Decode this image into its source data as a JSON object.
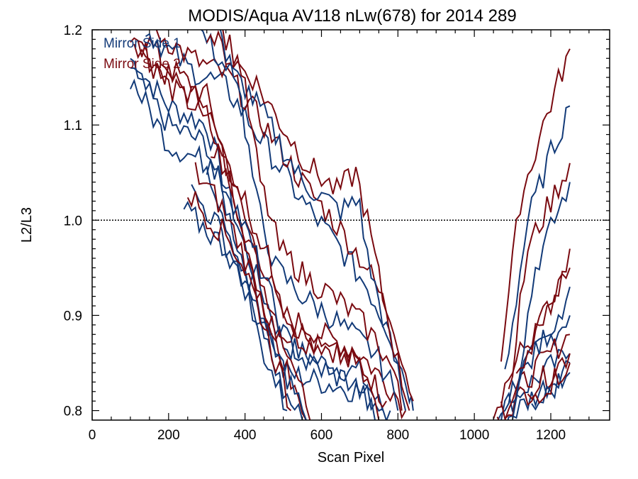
{
  "chart_data": {
    "type": "line",
    "title": "MODIS/Aqua AV118 nLw(678) for 2014 289",
    "xlabel": "Scan Pixel",
    "ylabel": "L2/L3",
    "xlim": [
      0,
      1354
    ],
    "ylim": [
      0.79,
      1.2
    ],
    "xticks": [
      "0",
      "200",
      "400",
      "600",
      "800",
      "1000",
      "1200"
    ],
    "yticks": [
      "0.8",
      "0.9",
      "1.0",
      "1.1",
      "1.2"
    ],
    "reference_line": 1.0,
    "legend": [
      {
        "label": "Mirror Side 1",
        "color": "#123a78"
      },
      {
        "label": "Mirror Side 2",
        "color": "#7a0a10"
      }
    ],
    "series": [
      {
        "mirror": 1,
        "segments": [
          [
            [
              100,
              1.17
            ],
            [
              200,
              1.12
            ],
            [
              300,
              1.1
            ],
            [
              400,
              0.97
            ],
            [
              450,
              0.92
            ],
            [
              500,
              0.87
            ],
            [
              600,
              0.85
            ],
            [
              700,
              0.84
            ],
            [
              760,
              0.8
            ]
          ],
          [
            [
              1060,
              0.79
            ],
            [
              1120,
              0.84
            ],
            [
              1180,
              0.87
            ],
            [
              1250,
              0.9
            ]
          ]
        ]
      },
      {
        "mirror": 2,
        "segments": [
          [
            [
              100,
              1.19
            ],
            [
              200,
              1.15
            ],
            [
              300,
              1.12
            ],
            [
              400,
              0.99
            ],
            [
              450,
              0.93
            ],
            [
              500,
              0.88
            ],
            [
              600,
              0.87
            ],
            [
              700,
              0.85
            ],
            [
              770,
              0.81
            ]
          ],
          [
            [
              1050,
              0.8
            ],
            [
              1120,
              0.86
            ],
            [
              1180,
              0.89
            ],
            [
              1250,
              0.95
            ]
          ]
        ]
      },
      {
        "mirror": 1,
        "segments": [
          [
            [
              100,
              1.16
            ],
            [
              200,
              1.1
            ],
            [
              300,
              1.08
            ],
            [
              400,
              0.95
            ],
            [
              450,
              0.9
            ],
            [
              500,
              0.84
            ],
            [
              600,
              0.83
            ],
            [
              700,
              0.82
            ],
            [
              780,
              0.8
            ]
          ],
          [
            [
              1070,
              0.8
            ],
            [
              1120,
              0.82
            ],
            [
              1180,
              0.84
            ],
            [
              1250,
              0.86
            ]
          ]
        ]
      },
      {
        "mirror": 2,
        "segments": [
          [
            [
              120,
              1.2
            ],
            [
              200,
              1.16
            ],
            [
              300,
              1.13
            ],
            [
              400,
              1.0
            ],
            [
              450,
              0.95
            ],
            [
              500,
              0.9
            ],
            [
              600,
              0.88
            ],
            [
              700,
              0.86
            ],
            [
              790,
              0.82
            ],
            [
              820,
              0.8
            ]
          ],
          [
            [
              1060,
              0.79
            ],
            [
              1130,
              0.83
            ],
            [
              1200,
              0.86
            ],
            [
              1250,
              0.88
            ]
          ]
        ]
      },
      {
        "mirror": 1,
        "segments": [
          [
            [
              100,
              1.15
            ],
            [
              200,
              1.08
            ],
            [
              300,
              1.06
            ],
            [
              400,
              0.94
            ],
            [
              450,
              0.88
            ],
            [
              500,
              0.82
            ],
            [
              550,
              0.79
            ]
          ],
          [
            [
              1080,
              0.79
            ],
            [
              1140,
              0.81
            ],
            [
              1200,
              0.83
            ],
            [
              1250,
              0.85
            ]
          ]
        ]
      },
      {
        "mirror": 2,
        "segments": [
          [
            [
              110,
              1.19
            ],
            [
              200,
              1.14
            ],
            [
              300,
              1.11
            ],
            [
              400,
              0.98
            ],
            [
              450,
              0.91
            ],
            [
              500,
              0.85
            ],
            [
              560,
              0.79
            ]
          ],
          [
            [
              1070,
              0.8
            ],
            [
              1140,
              0.82
            ],
            [
              1200,
              0.84
            ],
            [
              1250,
              0.86
            ]
          ]
        ]
      },
      {
        "mirror": 1,
        "segments": [
          [
            [
              140,
              1.2
            ],
            [
              250,
              1.16
            ],
            [
              350,
              1.14
            ],
            [
              450,
              1.08
            ],
            [
              550,
              1.02
            ],
            [
              650,
              0.97
            ],
            [
              720,
              0.93
            ],
            [
              780,
              0.88
            ],
            [
              830,
              0.82
            ],
            [
              840,
              0.8
            ]
          ],
          [
            [
              1100,
              0.8
            ],
            [
              1160,
              0.95
            ],
            [
              1200,
              0.99
            ],
            [
              1250,
              1.04
            ]
          ]
        ]
      },
      {
        "mirror": 2,
        "segments": [
          [
            [
              160,
              1.2
            ],
            [
              260,
              1.17
            ],
            [
              360,
              1.15
            ],
            [
              450,
              1.1
            ],
            [
              550,
              1.04
            ],
            [
              650,
              0.99
            ],
            [
              720,
              0.95
            ],
            [
              790,
              0.89
            ],
            [
              840,
              0.81
            ]
          ],
          [
            [
              1090,
              0.82
            ],
            [
              1140,
              0.97
            ],
            [
              1200,
              1.02
            ],
            [
              1250,
              1.06
            ]
          ]
        ]
      },
      {
        "mirror": 1,
        "segments": [
          [
            [
              280,
              1.2
            ],
            [
              350,
              1.16
            ],
            [
              400,
              1.14
            ],
            [
              450,
              1.11
            ],
            [
              550,
              1.04
            ],
            [
              650,
              1.01
            ],
            [
              700,
              1.02
            ],
            [
              720,
              0.96
            ],
            [
              760,
              0.9
            ],
            [
              800,
              0.84
            ],
            [
              820,
              0.8
            ]
          ],
          [
            [
              1080,
              0.84
            ],
            [
              1140,
              1.0
            ],
            [
              1200,
              1.07
            ],
            [
              1250,
              1.12
            ]
          ]
        ]
      },
      {
        "mirror": 2,
        "segments": [
          [
            [
              300,
              1.2
            ],
            [
              360,
              1.17
            ],
            [
              420,
              1.15
            ],
            [
              480,
              1.11
            ],
            [
              560,
              1.06
            ],
            [
              640,
              1.03
            ],
            [
              690,
              1.05
            ],
            [
              720,
              1.0
            ],
            [
              760,
              0.92
            ],
            [
              800,
              0.85
            ],
            [
              830,
              0.8
            ]
          ],
          [
            [
              1070,
              0.86
            ],
            [
              1120,
              1.02
            ],
            [
              1180,
              1.1
            ],
            [
              1250,
              1.18
            ]
          ]
        ]
      },
      {
        "mirror": 1,
        "segments": [
          [
            [
              330,
              1.2
            ],
            [
              380,
              1.15
            ],
            [
              430,
              1.02
            ],
            [
              480,
              0.95
            ],
            [
              550,
              0.92
            ],
            [
              620,
              0.9
            ],
            [
              680,
              0.88
            ],
            [
              740,
              0.86
            ],
            [
              780,
              0.83
            ],
            [
              800,
              0.8
            ]
          ],
          [
            [
              1100,
              0.82
            ],
            [
              1160,
              0.86
            ],
            [
              1220,
              0.9
            ],
            [
              1250,
              0.93
            ]
          ]
        ]
      },
      {
        "mirror": 2,
        "segments": [
          [
            [
              340,
              1.2
            ],
            [
              390,
              1.16
            ],
            [
              440,
              1.04
            ],
            [
              490,
              0.97
            ],
            [
              560,
              0.94
            ],
            [
              630,
              0.92
            ],
            [
              690,
              0.9
            ],
            [
              750,
              0.87
            ],
            [
              790,
              0.84
            ],
            [
              810,
              0.8
            ]
          ],
          [
            [
              1110,
              0.84
            ],
            [
              1170,
              0.89
            ],
            [
              1220,
              0.93
            ],
            [
              1250,
              0.97
            ]
          ]
        ]
      },
      {
        "mirror": 1,
        "segments": [
          [
            [
              300,
              1.06
            ],
            [
              360,
              1.03
            ],
            [
              400,
              0.99
            ],
            [
              450,
              0.94
            ],
            [
              500,
              0.88
            ],
            [
              560,
              0.85
            ],
            [
              620,
              0.84
            ],
            [
              680,
              0.83
            ],
            [
              720,
              0.81
            ],
            [
              740,
              0.79
            ]
          ],
          [
            [
              1150,
              0.8
            ],
            [
              1200,
              0.82
            ],
            [
              1250,
              0.84
            ]
          ]
        ]
      },
      {
        "mirror": 2,
        "segments": [
          [
            [
              310,
              1.08
            ],
            [
              370,
              1.05
            ],
            [
              410,
              1.01
            ],
            [
              460,
              0.96
            ],
            [
              510,
              0.9
            ],
            [
              570,
              0.87
            ],
            [
              630,
              0.86
            ],
            [
              690,
              0.85
            ],
            [
              730,
              0.82
            ],
            [
              750,
              0.79
            ]
          ],
          [
            [
              1140,
              0.81
            ],
            [
              1200,
              0.83
            ],
            [
              1250,
              0.85
            ]
          ]
        ]
      },
      {
        "mirror": 1,
        "segments": [
          [
            [
              260,
              1.03
            ],
            [
              320,
              1.0
            ],
            [
              370,
              0.96
            ],
            [
              420,
              0.91
            ],
            [
              480,
              0.86
            ],
            [
              530,
              0.82
            ],
            [
              560,
              0.79
            ]
          ]
        ]
      },
      {
        "mirror": 2,
        "segments": [
          [
            [
              270,
              1.05
            ],
            [
              330,
              1.02
            ],
            [
              380,
              0.98
            ],
            [
              430,
              0.93
            ],
            [
              490,
              0.87
            ],
            [
              540,
              0.83
            ],
            [
              570,
              0.79
            ]
          ]
        ]
      },
      {
        "mirror": 1,
        "segments": [
          [
            [
              240,
              1.01
            ],
            [
              300,
              0.99
            ],
            [
              350,
              0.97
            ],
            [
              400,
              0.93
            ],
            [
              440,
              0.87
            ],
            [
              480,
              0.83
            ],
            [
              510,
              0.8
            ]
          ]
        ]
      },
      {
        "mirror": 2,
        "segments": [
          [
            [
              250,
              1.03
            ],
            [
              310,
              1.0
            ],
            [
              360,
              0.98
            ],
            [
              410,
              0.94
            ],
            [
              450,
              0.89
            ],
            [
              490,
              0.84
            ],
            [
              520,
              0.8
            ]
          ]
        ]
      }
    ]
  }
}
